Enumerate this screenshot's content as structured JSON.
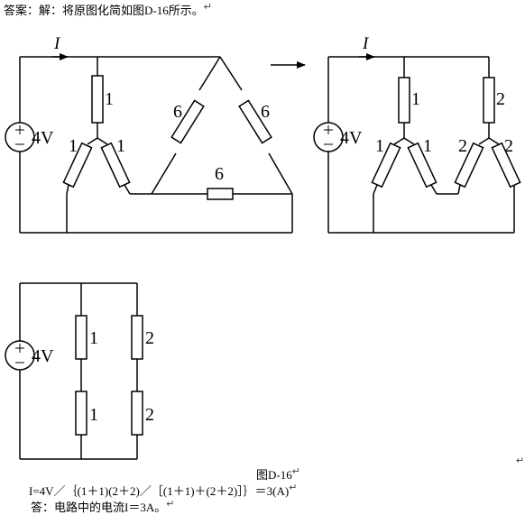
{
  "header": "答案：解：将原图化简如图D-16所示。",
  "current_label": "I",
  "source_label": "4V",
  "circuit1": {
    "r_top": "1",
    "r_left": "1",
    "r_mid": "1",
    "r_delta_left": "6",
    "r_delta_right": "6",
    "r_delta_bottom": "6"
  },
  "circuit2": {
    "r_top_a": "1",
    "r_top_b": "2",
    "r_a1": "1",
    "r_a2": "1",
    "r_b1": "2",
    "r_b2": "2"
  },
  "circuit3": {
    "r_left_top": "1",
    "r_left_bottom": "1",
    "r_right_top": "2",
    "r_right_bottom": "2"
  },
  "caption": "图D-16",
  "formula": "I=4V／｛(1＋1)(2＋2)／［(1＋1)＋(2＋2)］｝＝3(A)",
  "answer": "答：电路中的电流I＝3A。",
  "para_mark": "↵"
}
